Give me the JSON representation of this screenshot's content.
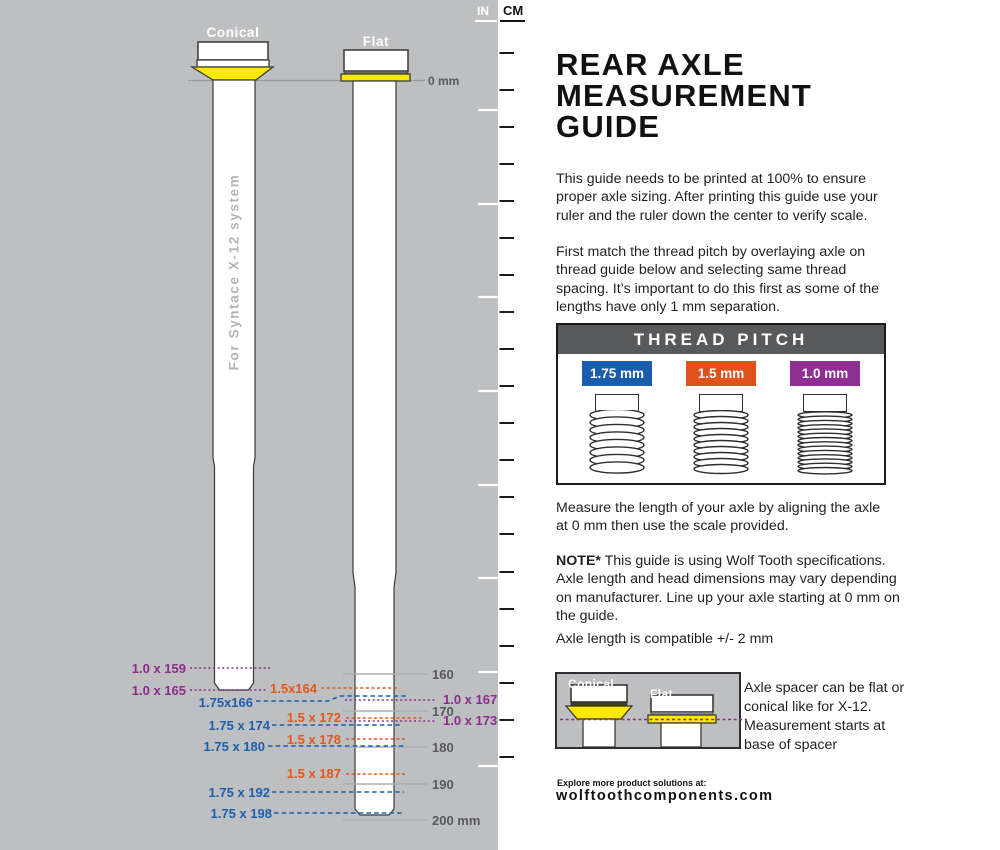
{
  "ruler": {
    "in_label": "IN",
    "cm_label": "CM"
  },
  "diagram": {
    "conical_label": "Conical",
    "flat_label": "Flat",
    "zero_label": "0 mm",
    "shaft_text": "For Syntace X-12 system",
    "scale_marks": [
      "160",
      "170",
      "180",
      "190",
      "200 mm"
    ],
    "measurements": {
      "purple_left": [
        "1.0 x 159",
        "1.0 x 165"
      ],
      "blue": [
        "1.75x166",
        "1.75 x 174",
        "1.75 x 180",
        "1.75 x 192",
        "1.75 x 198"
      ],
      "orange": [
        "1.5x164",
        "1.5 x 172",
        "1.5 x 178",
        "1.5 x 187"
      ],
      "purple_right": [
        "1.0 x 167",
        "1.0 x 173"
      ]
    },
    "colors": {
      "pitch_175": "#1A5DAD",
      "pitch_15": "#E0511C",
      "pitch_10": "#8F2E93",
      "spacer_yellow": "#F9E900",
      "panel_gray": "#BEBFC1"
    }
  },
  "content": {
    "title": "REAR AXLE\nMEASUREMENT\nGUIDE",
    "para1": "This guide needs to be printed at 100% to ensure\nproper axle sizing. After printing this guide use your\nruler and the ruler down the center to verify scale.",
    "para2": "First match the thread pitch by overlaying axle on\nthread guide below and selecting same thread\nspacing. It’s important to do this first as some of the\nlengths have only 1 mm separation.",
    "thread_pitch": {
      "title": "THREAD PITCH",
      "items": [
        "1.75 mm",
        "1.5 mm",
        "1.0 mm"
      ]
    },
    "para3": "Measure the length of your axle by aligning the axle\nat 0 mm then use the scale provided.",
    "note_label": "NOTE*",
    "note_text": "  This guide is using Wolf Tooth specifications.\nAxle length and head dimensions may vary depending\non manufacturer. Line up your axle starting at 0 mm on\nthe guide.",
    "para4": "Axle length is compatible +/- 2 mm",
    "spacer_box": {
      "conical_label": "Conical",
      "flat_label": "Flat",
      "text": "Axle spacer can be flat or\nconical like for X-12.\nMeasurement starts at\nbase of spacer"
    },
    "footer": {
      "line1": "Explore more product solutions at:",
      "line2": "wolftoothcomponents.com"
    }
  }
}
